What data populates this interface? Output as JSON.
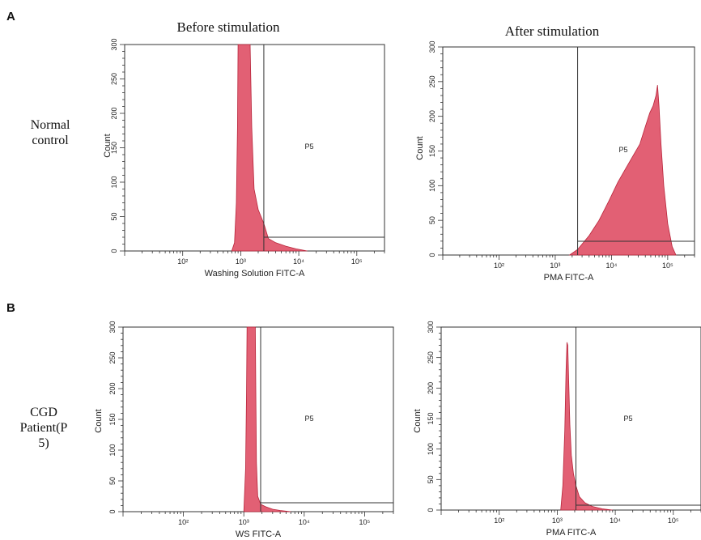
{
  "panels": [
    {
      "letter": "A",
      "row_label_lines": [
        "Normal",
        "control"
      ]
    },
    {
      "letter": "B",
      "row_label_lines": [
        "CGD",
        "Patient(P",
        "5)"
      ]
    }
  ],
  "column_titles": [
    "Before stimulation",
    "After stimulation"
  ],
  "chart_data": [
    {
      "type": "area",
      "panel": "A",
      "title": "Before stimulation",
      "xlabel": "Washing Solution FITC-A",
      "ylabel": "Count",
      "x_scale": "log",
      "xlim": [
        10,
        300000
      ],
      "ylim": [
        0,
        300
      ],
      "y_ticks": [
        "0",
        "50",
        "100",
        "150",
        "200",
        "250",
        "300"
      ],
      "x_ticks": [
        "10²",
        "10³",
        "10⁴",
        "10⁵"
      ],
      "gate": {
        "label": "P5",
        "x": 2500
      },
      "series": [
        {
          "color": "#e05268",
          "points": [
            [
              700,
              0
            ],
            [
              780,
              12
            ],
            [
              840,
              70
            ],
            [
              880,
              180
            ],
            [
              900,
              300
            ],
            [
              1300,
              300
            ],
            [
              1450,
              300
            ],
            [
              1550,
              180
            ],
            [
              1700,
              90
            ],
            [
              2000,
              60
            ],
            [
              2500,
              40
            ],
            [
              3000,
              18
            ],
            [
              4000,
              12
            ],
            [
              6000,
              7
            ],
            [
              9000,
              3
            ],
            [
              14000,
              0
            ]
          ]
        }
      ]
    },
    {
      "type": "area",
      "panel": "A",
      "title": "After stimulation",
      "xlabel": "PMA FITC-A",
      "ylabel": "Count",
      "x_scale": "log",
      "xlim": [
        10,
        300000
      ],
      "ylim": [
        0,
        300
      ],
      "y_ticks": [
        "0",
        "50",
        "100",
        "150",
        "200",
        "250",
        "300"
      ],
      "x_ticks": [
        "10²",
        "10³",
        "10⁴",
        "10⁵"
      ],
      "gate": {
        "label": "P5",
        "x": 2500
      },
      "series": [
        {
          "color": "#e05268",
          "points": [
            [
              1800,
              0
            ],
            [
              2500,
              8
            ],
            [
              4000,
              28
            ],
            [
              6000,
              50
            ],
            [
              9000,
              78
            ],
            [
              13000,
              105
            ],
            [
              18000,
              125
            ],
            [
              25000,
              145
            ],
            [
              32000,
              160
            ],
            [
              40000,
              185
            ],
            [
              48000,
              205
            ],
            [
              55000,
              215
            ],
            [
              62000,
              230
            ],
            [
              66000,
              245
            ],
            [
              70000,
              215
            ],
            [
              76000,
              160
            ],
            [
              85000,
              100
            ],
            [
              100000,
              45
            ],
            [
              120000,
              12
            ],
            [
              140000,
              0
            ]
          ]
        }
      ]
    },
    {
      "type": "area",
      "panel": "B",
      "title": "Before stimulation",
      "xlabel": "WS FITC-A",
      "ylabel": "Count",
      "x_scale": "log",
      "xlim": [
        10,
        300000
      ],
      "ylim": [
        0,
        300
      ],
      "y_ticks": [
        "0",
        "50",
        "100",
        "150",
        "200",
        "250",
        "300"
      ],
      "x_ticks": [
        "10²",
        "10³",
        "10⁴",
        "10⁵"
      ],
      "gate": {
        "label": "P5",
        "x": 1900
      },
      "series": [
        {
          "color": "#e05268",
          "points": [
            [
              1000,
              0
            ],
            [
              1070,
              70
            ],
            [
              1110,
              200
            ],
            [
              1130,
              300
            ],
            [
              1550,
              300
            ],
            [
              1580,
              200
            ],
            [
              1620,
              80
            ],
            [
              1700,
              25
            ],
            [
              1900,
              12
            ],
            [
              2300,
              8
            ],
            [
              3000,
              4
            ],
            [
              4000,
              2
            ],
            [
              6000,
              0
            ]
          ]
        }
      ]
    },
    {
      "type": "area",
      "panel": "B",
      "title": "After stimulation",
      "xlabel": "PMA FITC-A",
      "ylabel": "Count",
      "x_scale": "log",
      "xlim": [
        10,
        300000
      ],
      "ylim": [
        0,
        300
      ],
      "y_ticks": [
        "0",
        "50",
        "100",
        "150",
        "200",
        "250",
        "300"
      ],
      "x_ticks": [
        "10²",
        "10³",
        "10⁴",
        "10⁵"
      ],
      "gate": {
        "label": "P5",
        "x": 2100
      },
      "series": [
        {
          "color": "#e05268",
          "points": [
            [
              1150,
              0
            ],
            [
              1250,
              40
            ],
            [
              1350,
              130
            ],
            [
              1420,
              230
            ],
            [
              1470,
              275
            ],
            [
              1520,
              270
            ],
            [
              1580,
              210
            ],
            [
              1650,
              140
            ],
            [
              1750,
              90
            ],
            [
              1900,
              60
            ],
            [
              2100,
              40
            ],
            [
              2400,
              22
            ],
            [
              3000,
              12
            ],
            [
              4000,
              6
            ],
            [
              6000,
              2
            ],
            [
              9000,
              0
            ]
          ]
        }
      ]
    }
  ]
}
